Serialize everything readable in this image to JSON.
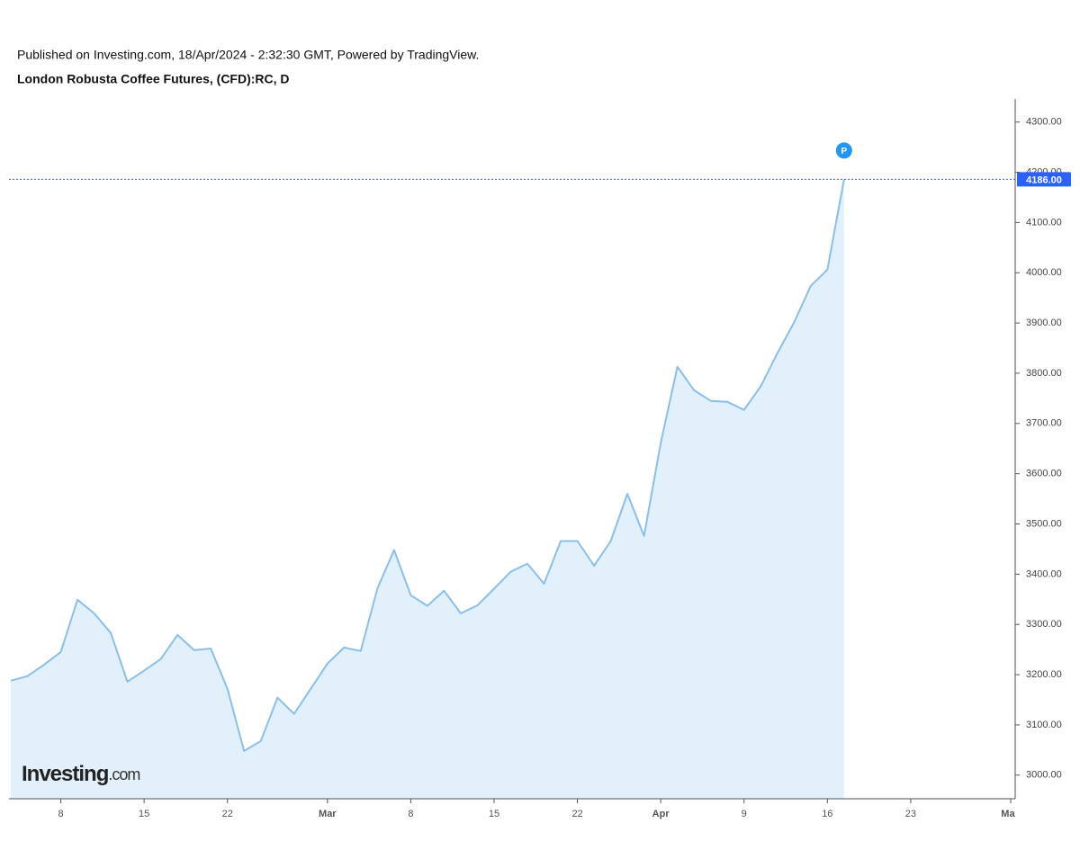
{
  "publisher": "Published on Investing.com, 18/Apr/2024 - 2:32:30 GMT, Powered by TradingView.",
  "watermark": {
    "brand": "Investing",
    "suffix": ".com"
  },
  "chart_data": {
    "type": "area",
    "title": "London Robusta Coffee Futures, (CFD):RC, D",
    "color": "#8bbfea",
    "fill": "#e1f0fb",
    "categories": [
      null,
      null,
      null,
      "8",
      null,
      null,
      null,
      null,
      "15",
      null,
      null,
      null,
      null,
      "22",
      null,
      null,
      null,
      null,
      null,
      "Mar",
      null,
      null,
      null,
      null,
      "8",
      null,
      null,
      null,
      null,
      "15",
      null,
      null,
      null,
      null,
      "22",
      null,
      null,
      null,
      null,
      "Apr",
      null,
      null,
      null,
      null,
      "9",
      null,
      null,
      null,
      null,
      "16",
      null,
      null,
      null,
      null,
      "23",
      null,
      null,
      null,
      null,
      null,
      "May"
    ],
    "values": [
      3188,
      3197,
      3220,
      3245,
      3349,
      3322,
      3283,
      3186,
      3208,
      3231,
      3279,
      3249,
      3252,
      3172,
      3048,
      3068,
      3154,
      3122,
      3172,
      3222,
      3254,
      3247,
      3372,
      3448,
      3358,
      3337,
      3367,
      3322,
      3338,
      3371,
      3405,
      3421,
      3381,
      3466,
      3466,
      3417,
      3466,
      3560,
      3476,
      3661,
      3813,
      3766,
      3745,
      3743,
      3727,
      3774,
      3840,
      3901,
      3974,
      4006,
      4186,
      null,
      null,
      null,
      null,
      null,
      null,
      null,
      null,
      null,
      null
    ],
    "ylim": [
      2953,
      4346
    ],
    "yticks": [
      {
        "value": 3000,
        "label": "3000.00"
      },
      {
        "value": 3100,
        "label": "3100.00"
      },
      {
        "value": 3200,
        "label": "3200.00"
      },
      {
        "value": 3300,
        "label": "3300.00"
      },
      {
        "value": 3400,
        "label": "3400.00"
      },
      {
        "value": 3500,
        "label": "3500.00"
      },
      {
        "value": 3600,
        "label": "3600.00"
      },
      {
        "value": 3700,
        "label": "3700.00"
      },
      {
        "value": 3800,
        "label": "3800.00"
      },
      {
        "value": 3900,
        "label": "3900.00"
      },
      {
        "value": 4000,
        "label": "4000.00"
      },
      {
        "value": 4100,
        "label": "4100.00"
      },
      {
        "value": 4200,
        "label": "4200.00"
      },
      {
        "value": 4300,
        "label": "4300.00"
      }
    ],
    "marker": {
      "value": 4186,
      "label": "4186.00",
      "badge": "P",
      "color": "#2962ff"
    }
  }
}
